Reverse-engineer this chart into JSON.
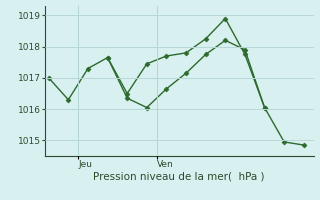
{
  "line1_x": [
    0,
    1,
    2,
    3,
    4,
    5,
    6,
    7,
    8,
    9,
    10,
    11
  ],
  "line1_y": [
    1017.0,
    1016.3,
    1017.3,
    1017.65,
    1016.35,
    1016.05,
    1016.65,
    1017.15,
    1017.75,
    1018.2,
    1017.9,
    1016.05
  ],
  "line2_x": [
    3,
    4,
    5,
    6,
    7,
    8,
    9,
    10,
    11,
    12,
    13
  ],
  "line2_y": [
    1017.65,
    1016.5,
    1017.45,
    1017.7,
    1017.8,
    1018.25,
    1018.9,
    1017.75,
    1016.05,
    1014.95,
    1014.85
  ],
  "vline1_x": 1.5,
  "vline2_x": 5.5,
  "line_color": "#2d6a2d",
  "bg_color": "#d8f0f0",
  "grid_color": "#b8d8d8",
  "xlabel": "Pression niveau de la mer(  hPa )",
  "xlabel_fontsize": 7.5,
  "tick_label1": "Jeu",
  "tick_label2": "Ven",
  "tick_x1": 1.5,
  "tick_x2": 5.5,
  "ylim": [
    1014.5,
    1019.3
  ],
  "yticks": [
    1015,
    1016,
    1017,
    1018,
    1019
  ],
  "marker": "D",
  "marker_size": 2.5,
  "linewidth": 1.0,
  "xlim": [
    -0.2,
    13.5
  ]
}
